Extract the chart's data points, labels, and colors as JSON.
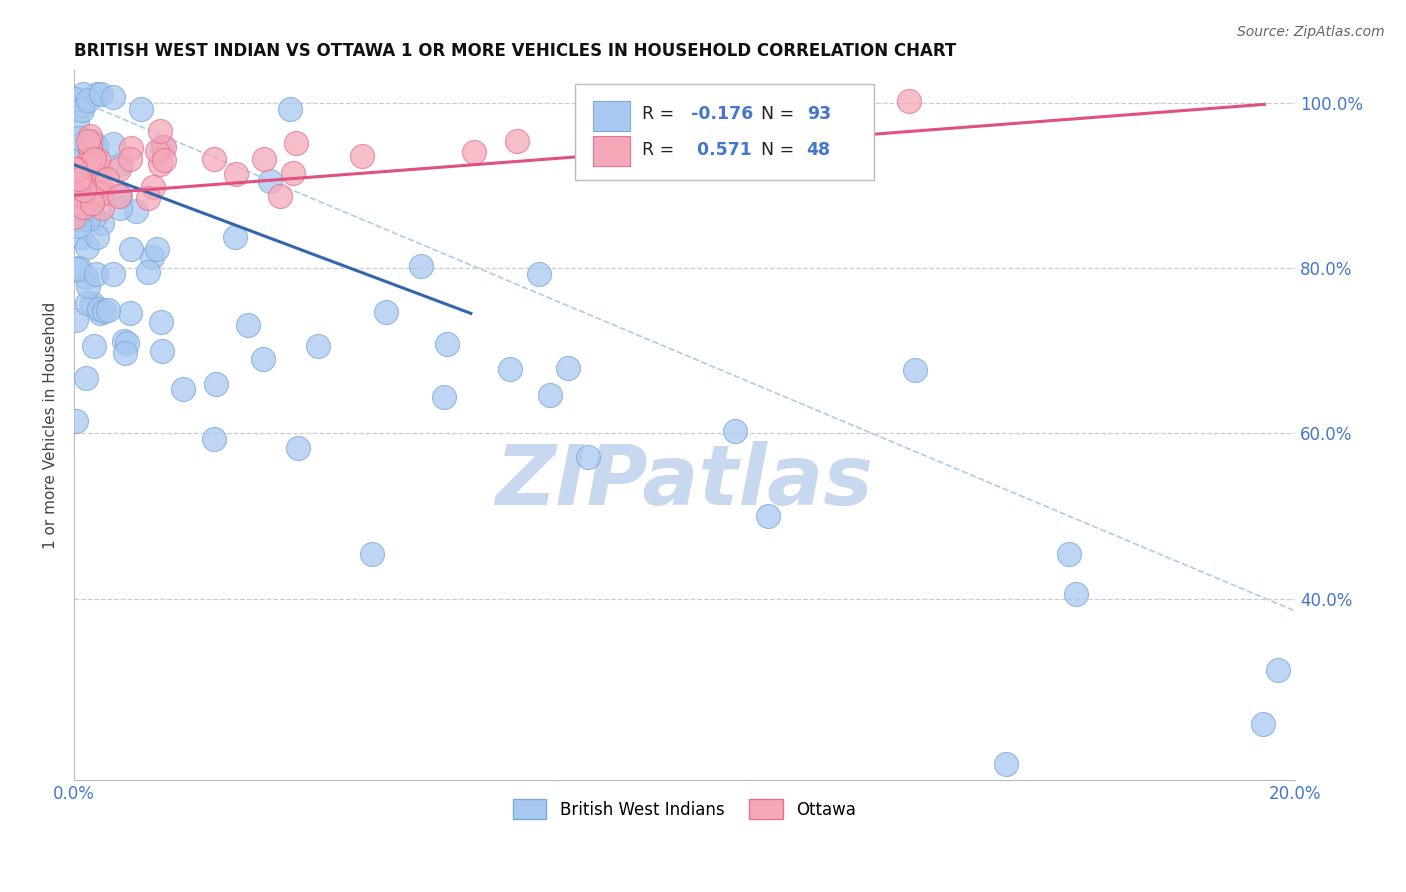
{
  "title": "BRITISH WEST INDIAN VS OTTAWA 1 OR MORE VEHICLES IN HOUSEHOLD CORRELATION CHART",
  "source": "Source: ZipAtlas.com",
  "ylabel": "1 or more Vehicles in Household",
  "xlim": [
    0.0,
    0.2
  ],
  "ylim": [
    0.18,
    1.04
  ],
  "xtick_positions": [
    0.0,
    0.2
  ],
  "xtick_labels": [
    "0.0%",
    "20.0%"
  ],
  "ytick_positions": [
    0.4,
    0.6,
    0.8,
    1.0
  ],
  "ytick_labels": [
    "40.0%",
    "60.0%",
    "80.0%",
    "100.0%"
  ],
  "grid_yticks": [
    0.4,
    0.6,
    0.8,
    1.0
  ],
  "blue_r": "-0.176",
  "blue_n": "93",
  "pink_r": "0.571",
  "pink_n": "48",
  "blue_color": "#A8C8F0",
  "pink_color": "#F4A8B8",
  "blue_edge_color": "#7AAAD8",
  "pink_edge_color": "#E87090",
  "blue_line_color": "#3366AA",
  "pink_line_color": "#E05080",
  "diag_line_color": "#AACCEE",
  "grid_color": "#CCCCCC",
  "watermark_color": "#C8D8EE",
  "background_color": "#FFFFFF",
  "tick_color": "#4477CC",
  "legend_text_color": "#222222",
  "legend_value_color": "#4477CC",
  "blue_line_x0": 0.0,
  "blue_line_y0": 0.925,
  "blue_line_x1": 0.065,
  "blue_line_y1": 0.745,
  "pink_line_x0": 0.0,
  "pink_line_y0": 0.888,
  "pink_line_x1": 0.195,
  "pink_line_y1": 0.998,
  "diag_line_x0": 0.0,
  "diag_line_y0": 1.005,
  "diag_line_x1": 0.2,
  "diag_line_y1": 0.385
}
